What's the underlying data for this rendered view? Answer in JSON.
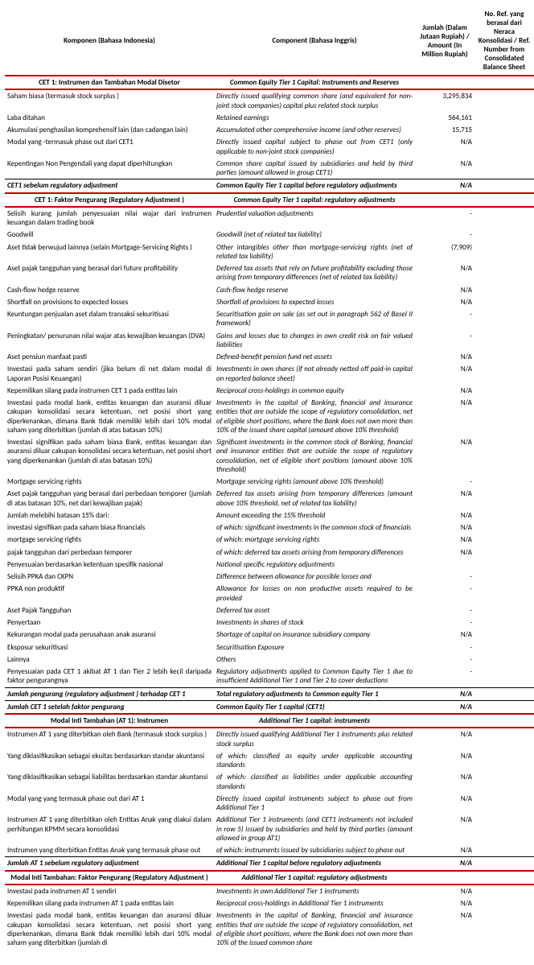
{
  "header": {
    "col1": "Komponen (Bahasa Indonesia)",
    "col2": "Component (Bahasa Inggris)",
    "col3": "Jumlah (Dalam Jutaan Rupiah) / Amount (In Million Rupiah)",
    "col4": "No. Ref. yang berasal dari  Neraca Konsolidasi / Ref. Number from Consolidated Balance Sheet"
  },
  "rows": [
    {
      "type": "section",
      "id": "CET 1: Instrumen dan Tambahan Modal  Disetor",
      "en": "Common Equity Tier 1 Capital: Instruments and Reserves"
    },
    {
      "type": "row",
      "id": "Saham biasa (termasuk stock surplus )",
      "en": "Directly issued qualifying common share (and equivalent for non-joint stock companies) capital plus related stock surplus",
      "amt": "3,295,834",
      "ref": ""
    },
    {
      "type": "row",
      "id": "Laba ditahan",
      "en": "Retained earnings",
      "amt": "564,161",
      "ref": ""
    },
    {
      "type": "row",
      "id": "Akumulasi penghasilan komprehensif lain (dan cadangan lain)",
      "en": "Accumulated other comprehensive income (and other reserves)",
      "amt": "15,715",
      "ref": ""
    },
    {
      "type": "row",
      "id": "Modal yang -termasuk phase out  dari CET1",
      "en": "Directly issued capital subject to phase out from CET1 (only applicable to non-joint stock companies)",
      "amt": "N/A",
      "ref": ""
    },
    {
      "type": "row",
      "id": "Kepentingan Non Pengendali yang dapat diperhitungkan",
      "en": "Common share capital issued by subsidiaries and held by third parties (amount allowed in group CET1)",
      "amt": "N/A",
      "ref": ""
    },
    {
      "type": "subtot",
      "id": "CET1 sebelum regulatory adjustment",
      "en": "Common Equity Tier 1 capital before regulatory adjustments",
      "amt": "N/A",
      "ref": ""
    },
    {
      "type": "section",
      "id": "CET 1: Faktor Pengurang (Regulatory Adjustment )",
      "en": "Common Equity Tier 1 capital: regulatory adjustments"
    },
    {
      "type": "row",
      "id": "Selisih kurang jumlah penyesuaian nilai wajar dari instrumen keuangan dalam trading book",
      "en": "Prudential valuation adjustments",
      "amt": "-",
      "ref": ""
    },
    {
      "type": "row",
      "id": "Goodwill",
      "en": "Goodwill (net of related tax liability)",
      "amt": "-",
      "ref": ""
    },
    {
      "type": "row",
      "id": "Aset tidak berwujud lainnya (selain Mortgage-Servicing Rights )",
      "en": "Other intangibles other than mortgage-servicing rights (net of related tax liability)",
      "amt": "(7,909)",
      "ref": ""
    },
    {
      "type": "row",
      "id": "Aset pajak tangguhan yang berasal dari future profitability",
      "en": "Deferred tax assets that rely on future profitability excluding those arising from temporary differences (net of related tax liability)",
      "amt": "N/A",
      "ref": ""
    },
    {
      "type": "row",
      "id": "Cash-flow hedge reserve",
      "en": "Cash-flow hedge reserve",
      "amt": "N/A",
      "ref": ""
    },
    {
      "type": "row",
      "id": "Shortfall on provisions to expected losses",
      "en": "Shortfall of provisions to expected losses",
      "amt": "N/A",
      "ref": ""
    },
    {
      "type": "row",
      "id": "Keuntungan penjualan aset dalam transaksi sekuritisasi",
      "en": "Securitisation gain on sale (as set out in paragraph 562 of Basel II framework)",
      "amt": "-",
      "ref": ""
    },
    {
      "type": "row",
      "id": "Peningkatan/ penurunan nilai wajar atas kewajiban keuangan (DVA)",
      "en": "Gains and losses due to changes in own credit risk on fair valued liabilities",
      "amt": "-",
      "ref": ""
    },
    {
      "type": "row",
      "id": "Aset pensiun manfaat pasti",
      "en": "Defined-benefit pension fund net assets",
      "amt": "N/A",
      "ref": ""
    },
    {
      "type": "row",
      "id": "Investasi pada saham sendiri (jika belum di net  dalam modal di Laporan Posisi Keuangan)",
      "en": "Investments in own shares (if not already netted off paid-in capital on reported balance sheet)",
      "amt": "N/A",
      "ref": ""
    },
    {
      "type": "row",
      "id": "Kepemilikan silang pada instrumen CET 1 pada entitas lain",
      "en": "Reciprocal cross-holdings in common equity",
      "amt": "N/A",
      "ref": ""
    },
    {
      "type": "row",
      "id": "Investasi pada modal bank, entitas keuangan dan asuransi diluar cakupan konsolidasi secara ketentuan, net posisi short yang diperkenankan, dimana Bank tidak memiliki lebih dari 10% modal saham yang diterbitkan (jumlah di atas batasan 10%)",
      "en": "Investments in the capital of Banking, financial and insurance entities that are outside the scope of regulatory consolidation, net of eligible short positions, where the Bank does not own more than 10% of the issued share capital (amount above 10% threshold)",
      "amt": "N/A",
      "ref": ""
    },
    {
      "type": "row",
      "id": "Investasi signifikan pada saham biasa Bank, entitas keuangan dan asuransi diluar cakupan konsolidasi secara ketentuan, net posisi short yang diperkenankan (jumlah di atas batasan 10%)",
      "en": "Significant investments in the common stock of Banking, financial and insurance entities that are outside the scope of regulatory consolidation, net of eligible short positions (amount above 10% threshold)",
      "amt": "N/A",
      "ref": ""
    },
    {
      "type": "row",
      "id": "Mortgage servicing rights",
      "en": "Mortgage servicing rights (amount above 10% threshold)",
      "amt": "-",
      "ref": ""
    },
    {
      "type": "row",
      "id": "Aset pajak tangguhan yang berasal dari perbedaan temporer (jumlah di atas batasan 10%, net  dari kewajiban pajak)",
      "en": "Deferred tax assets arising from temporary differences (amount above 10% threshold, net of related tax liability)",
      "amt": "N/A",
      "ref": ""
    },
    {
      "type": "row",
      "id": "Jumlah melebihi batasan 15% dari:",
      "en": "Amount exceeding the 15% threshold",
      "amt": "N/A",
      "ref": ""
    },
    {
      "type": "row",
      "id": "investasi signifikan pada saham biasa financials",
      "en": "of which: significant investments in the common stock of financials",
      "amt": "N/A",
      "ref": ""
    },
    {
      "type": "row",
      "id": "mortgage servicing rights",
      "en": "of which: mortgage servicing rights",
      "amt": "N/A",
      "ref": ""
    },
    {
      "type": "row",
      "id": "pajak tangguhan dari perbedaan temporer",
      "en": "of which: deferred tax assets arising from temporary differences",
      "amt": "N/A",
      "ref": ""
    },
    {
      "type": "row",
      "id": "Penyesuaian berdasarkan ketentuan spesifik nasional",
      "en": "National specific regulatory adjustments",
      "amt": "",
      "ref": ""
    },
    {
      "type": "row",
      "id": "Selisih PPKA dan CKPN",
      "en": "Difference between allowance for possible losses and",
      "amt": "-",
      "ref": ""
    },
    {
      "type": "row",
      "id": "PPKA  non produktif",
      "en": "Allowance for losses on non productive assets required to be provided",
      "amt": "-",
      "ref": ""
    },
    {
      "type": "row",
      "id": "Aset Pajak Tangguhan",
      "en": "Deferred tax asset",
      "amt": "-",
      "ref": ""
    },
    {
      "type": "row",
      "id": "Penyertaan",
      "en": "Investments in shares of stock",
      "amt": "-",
      "ref": ""
    },
    {
      "type": "row",
      "id": "Kekurangan modal pada perusahaan anak asuransi",
      "en": "Shortage of capital on insurance subsidiary company",
      "amt": "N/A",
      "ref": ""
    },
    {
      "type": "row",
      "id": "Eksposur sekuritisasi",
      "en": "Securitisation Exposure",
      "amt": "-",
      "ref": ""
    },
    {
      "type": "row",
      "id": "Lainnya",
      "en": "Others",
      "amt": "-",
      "ref": ""
    },
    {
      "type": "row",
      "id": "Penyesuaian pada CET 1 akibat AT 1 dan Tier 2 lebih kecil daripada faktor pengurangnya",
      "en": "Regulatory adjustments applied to Common Equity Tier 1 due to insufficient Additional Tier 1 and Tier 2 to cover deductions",
      "amt": "-",
      "ref": ""
    },
    {
      "type": "subtot-mid",
      "id": "Jumlah pengurang (regulatory adjustment ) terhadap CET 1",
      "en": "Total regulatory adjustments to Common equity Tier 1",
      "amt": "N/A",
      "ref": ""
    },
    {
      "type": "subtot",
      "id": "Jumlah CET 1 setelah faktor pengurang",
      "en": "Common Equity Tier 1 capital (CET1)",
      "amt": "N/A",
      "ref": ""
    },
    {
      "type": "section",
      "id": "Modal Inti Tambahan (AT 1): Instrumen",
      "en": "Additional Tier 1 capital: instruments"
    },
    {
      "type": "row",
      "id": "Instrumen AT 1 yang diterbitkan oleh Bank (termasuk stock surplus )",
      "en": "Directly issued qualifying Additional Tier 1 instruments plus related stock surplus",
      "amt": "N/A",
      "ref": ""
    },
    {
      "type": "row",
      "id": "Yang diklasifikasikan sebagai ekuitas berdasarkan standar akuntansi",
      "en": "of which: classified as equity under applicable accounting standards",
      "amt": "N/A",
      "ref": ""
    },
    {
      "type": "row",
      "id": "Yang diklasifikasikan sebagai liabilitas berdasarkan standar akuntansi",
      "en": "of which: classified as liabilities under applicable accounting standards",
      "amt": "N/A",
      "ref": ""
    },
    {
      "type": "row",
      "id": "Modal yang yang termasuk phase out  dari AT 1",
      "en": "Directly issued capital instruments subject to phase out from Additional Tier 1",
      "amt": "N/A",
      "ref": ""
    },
    {
      "type": "row",
      "id": "Instrumen AT 1 yang diterbitkan oleh Entitas Anak yang diakui dalam perhitungan KPMM secara konsolidasi",
      "en": "Additional Tier 1 instruments (and CET1 instruments not included in row 5) issued by subsidiaries and held by third parties (amount allowed in group AT1)",
      "amt": "N/A",
      "ref": ""
    },
    {
      "type": "row",
      "id": "Instrumen yang diterbitkan Entitas Anak yang termasuk phase out",
      "en": "of which: instruments issued by subsidiaries subject to phase out",
      "amt": "N/A",
      "ref": ""
    },
    {
      "type": "subtot",
      "id": "Jumlah AT 1 sebelum regulatory adjustment",
      "en": "Additional Tier 1 capital before regulatory adjustments",
      "amt": "N/A",
      "ref": ""
    },
    {
      "type": "section",
      "id": "Modal Inti Tambahan: Faktor Pengurang (Regulatory Adjustment )",
      "en": "Additional Tier 1 capital: regulatory adjustments"
    },
    {
      "type": "row",
      "id": "Investasi pada instrumen AT 1 sendiri",
      "en": "Investments in own Additional Tier 1 instruments",
      "amt": "N/A",
      "ref": ""
    },
    {
      "type": "row",
      "id": "Kepemilikan silang pada instrumen AT 1 pada entitas lain",
      "en": "Reciprocal cross-holdings in Additional Tier 1 instruments",
      "amt": "N/A",
      "ref": ""
    },
    {
      "type": "row",
      "id": "Investasi pada modal bank, entitas keuangan dan asuransi diluar cakupan konsolidasi secara ketentuan, net posisi short yang diperkenankan, dimana Bank tidak memiliki lebih dari 10% modal saham yang diterbitkan (jumlah di",
      "en": "Investments in the capital of Banking, financial and insurance entities that are outside the scope of regulatory consolidation, net of eligible short positions, where the Bank does not own more than 10% of the issued common share",
      "amt": "N/A",
      "ref": ""
    }
  ]
}
